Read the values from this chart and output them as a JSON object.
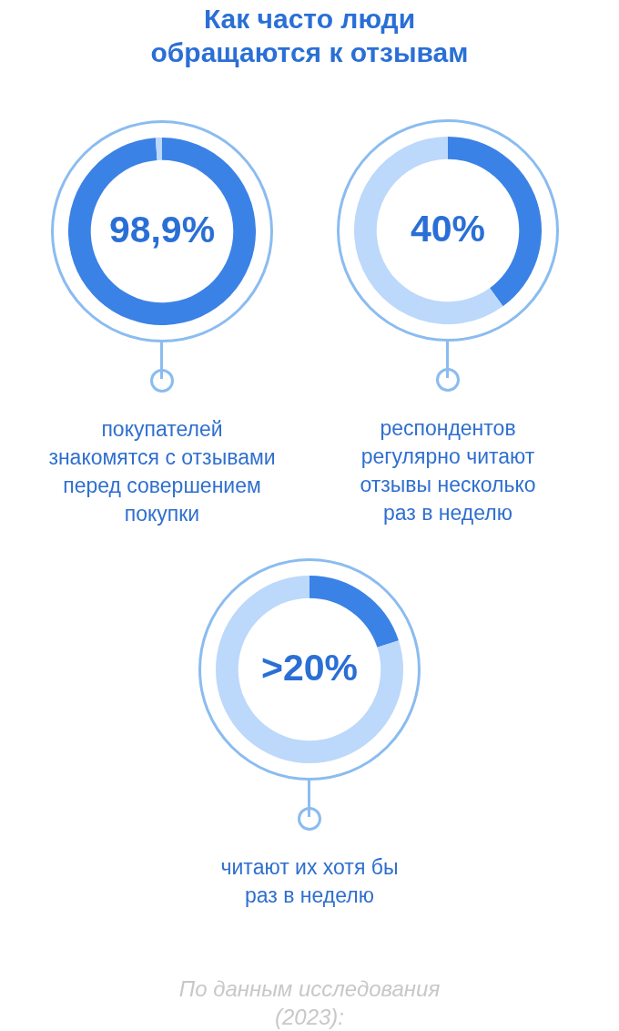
{
  "chart_data": [
    {
      "type": "donut",
      "title": "Как часто люди\nобращаются к отзывам",
      "categories": [
        null,
        null
      ],
      "values": [
        98.9,
        1.1
      ],
      "colors": [
        "#3b82e6",
        "#bcd8fb"
      ],
      "value_labels": [
        "98,9%",
        null
      ],
      "annotations": [
        "покупателей\nзнакомятся с отзывами\nперед совершением\nпокупки"
      ]
    },
    {
      "type": "donut",
      "categories": [
        null,
        null
      ],
      "values": [
        40,
        60
      ],
      "colors": [
        "#3b82e6",
        "#bcd8fb"
      ],
      "value_labels": [
        "40%",
        null
      ],
      "annotations": [
        "респондентов\nрегулярно читают\nотзывы несколько\nраз в неделю"
      ]
    },
    {
      "type": "donut",
      "categories": [
        null,
        null
      ],
      "values": [
        20,
        80
      ],
      "colors": [
        "#3b82e6",
        "#bcd8fb"
      ],
      "value_labels": [
        ">20%",
        null
      ],
      "annotations": [
        "читают их хотя бы\nраз в неделю"
      ]
    },
    {
      "type": "other",
      "annotations": [
        "По данным исследования\n(2023):"
      ]
    }
  ]
}
